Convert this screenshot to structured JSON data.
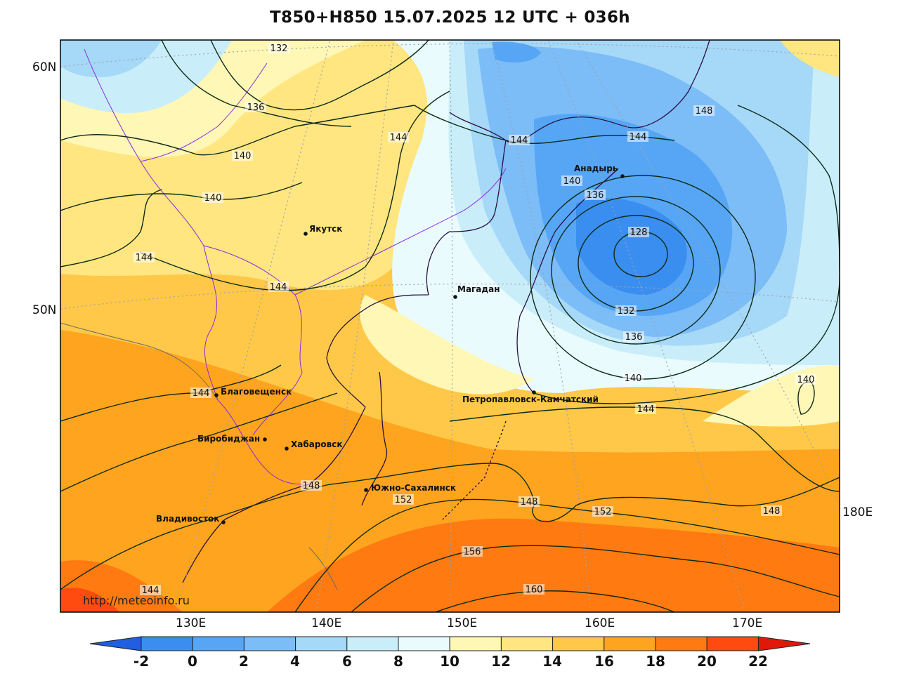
{
  "title": "T850+H850 15.07.2025 12 UTC + 036h",
  "credit": "http://meteoinfo.ru",
  "lat_labels": [
    "60N",
    "50N"
  ],
  "lon_labels": [
    "130E",
    "140E",
    "150E",
    "160E",
    "170E",
    "180E"
  ],
  "colorbar": {
    "labels": [
      "-2",
      "0",
      "2",
      "4",
      "6",
      "8",
      "10",
      "12",
      "14",
      "16",
      "18",
      "20",
      "22"
    ],
    "colors": [
      "#1f5fe0",
      "#3a8ef0",
      "#56a6f5",
      "#7cbcf7",
      "#a6d8f7",
      "#c9eefa",
      "#eafbfd",
      "#fff7b5",
      "#ffe680",
      "#ffc848",
      "#ffa41e",
      "#ff7a10",
      "#ff4a10",
      "#e01808"
    ]
  },
  "cities": [
    {
      "name": "Якутск"
    },
    {
      "name": "Анадырь"
    },
    {
      "name": "Магадан"
    },
    {
      "name": "Петропавловск-Камчатский"
    },
    {
      "name": "Благовещенск"
    },
    {
      "name": "Биробиджан"
    },
    {
      "name": "Хабаровск"
    },
    {
      "name": "Южно-Сахалинск"
    },
    {
      "name": "Владивосток"
    }
  ],
  "contour_labels": [
    "132",
    "136",
    "140",
    "144",
    "144",
    "144",
    "148",
    "144",
    "140",
    "136",
    "140",
    "144",
    "128",
    "132",
    "136",
    "140",
    "140",
    "144",
    "144",
    "148",
    "152",
    "148",
    "152",
    "148",
    "156",
    "160",
    "144"
  ]
}
